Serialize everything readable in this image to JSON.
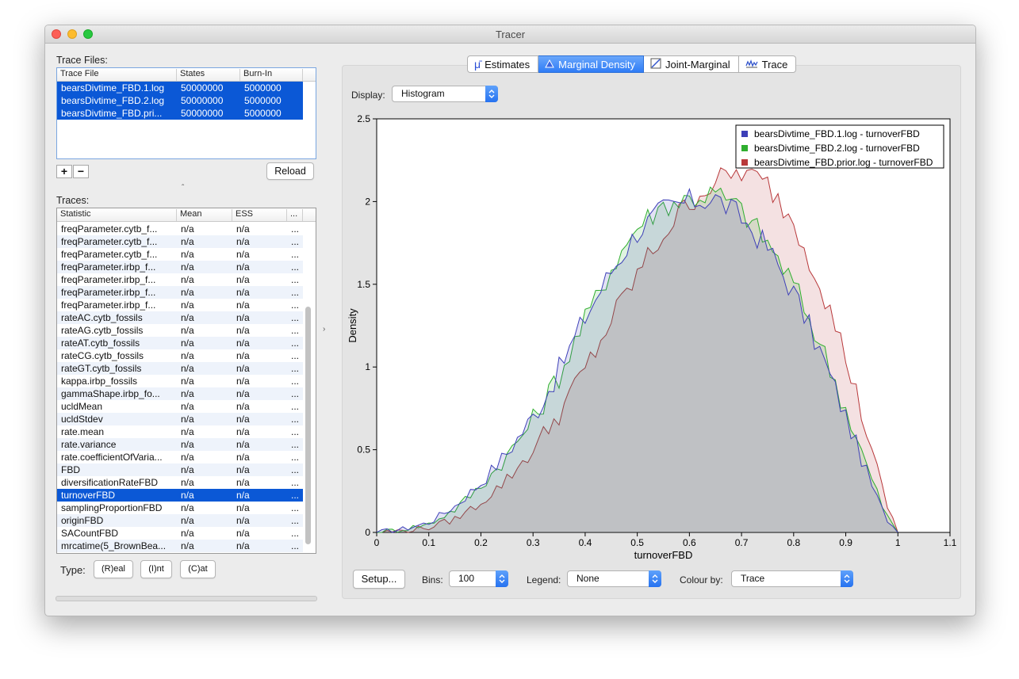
{
  "window": {
    "title": "Tracer"
  },
  "trace_files": {
    "label": "Trace Files:",
    "columns": [
      "Trace File",
      "States",
      "Burn-In"
    ],
    "rows": [
      {
        "file": "bearsDivtime_FBD.1.log",
        "states": "50000000",
        "burnin": "5000000"
      },
      {
        "file": "bearsDivtime_FBD.2.log",
        "states": "50000000",
        "burnin": "5000000"
      },
      {
        "file": "bearsDivtime_FBD.pri...",
        "states": "50000000",
        "burnin": "5000000"
      }
    ],
    "add_label": "+",
    "remove_label": "−",
    "reload_label": "Reload"
  },
  "traces": {
    "label": "Traces:",
    "columns": [
      "Statistic",
      "Mean",
      "ESS",
      "..."
    ],
    "rows": [
      {
        "stat": "freqParameter.cytb_f...",
        "mean": "n/a",
        "ess": "n/a",
        "more": "..."
      },
      {
        "stat": "freqParameter.cytb_f...",
        "mean": "n/a",
        "ess": "n/a",
        "more": "..."
      },
      {
        "stat": "freqParameter.cytb_f...",
        "mean": "n/a",
        "ess": "n/a",
        "more": "..."
      },
      {
        "stat": "freqParameter.irbp_f...",
        "mean": "n/a",
        "ess": "n/a",
        "more": "..."
      },
      {
        "stat": "freqParameter.irbp_f...",
        "mean": "n/a",
        "ess": "n/a",
        "more": "..."
      },
      {
        "stat": "freqParameter.irbp_f...",
        "mean": "n/a",
        "ess": "n/a",
        "more": "..."
      },
      {
        "stat": "freqParameter.irbp_f...",
        "mean": "n/a",
        "ess": "n/a",
        "more": "..."
      },
      {
        "stat": "rateAC.cytb_fossils",
        "mean": "n/a",
        "ess": "n/a",
        "more": "..."
      },
      {
        "stat": "rateAG.cytb_fossils",
        "mean": "n/a",
        "ess": "n/a",
        "more": "..."
      },
      {
        "stat": "rateAT.cytb_fossils",
        "mean": "n/a",
        "ess": "n/a",
        "more": "..."
      },
      {
        "stat": "rateCG.cytb_fossils",
        "mean": "n/a",
        "ess": "n/a",
        "more": "..."
      },
      {
        "stat": "rateGT.cytb_fossils",
        "mean": "n/a",
        "ess": "n/a",
        "more": "..."
      },
      {
        "stat": "kappa.irbp_fossils",
        "mean": "n/a",
        "ess": "n/a",
        "more": "..."
      },
      {
        "stat": "gammaShape.irbp_fo...",
        "mean": "n/a",
        "ess": "n/a",
        "more": "..."
      },
      {
        "stat": "ucldMean",
        "mean": "n/a",
        "ess": "n/a",
        "more": "..."
      },
      {
        "stat": "ucldStdev",
        "mean": "n/a",
        "ess": "n/a",
        "more": "..."
      },
      {
        "stat": "rate.mean",
        "mean": "n/a",
        "ess": "n/a",
        "more": "..."
      },
      {
        "stat": "rate.variance",
        "mean": "n/a",
        "ess": "n/a",
        "more": "..."
      },
      {
        "stat": "rate.coefficientOfVaria...",
        "mean": "n/a",
        "ess": "n/a",
        "more": "..."
      },
      {
        "stat": "FBD",
        "mean": "n/a",
        "ess": "n/a",
        "more": "..."
      },
      {
        "stat": "diversificationRateFBD",
        "mean": "n/a",
        "ess": "n/a",
        "more": "..."
      },
      {
        "stat": "turnoverFBD",
        "mean": "n/a",
        "ess": "n/a",
        "more": "...",
        "selected": true
      },
      {
        "stat": "samplingProportionFBD",
        "mean": "n/a",
        "ess": "n/a",
        "more": "..."
      },
      {
        "stat": "originFBD",
        "mean": "n/a",
        "ess": "n/a",
        "more": "..."
      },
      {
        "stat": "SACountFBD",
        "mean": "n/a",
        "ess": "n/a",
        "more": "..."
      },
      {
        "stat": "mrcatime(5_BrownBea...",
        "mean": "n/a",
        "ess": "n/a",
        "more": "..."
      }
    ]
  },
  "type_row": {
    "label": "Type:",
    "real": "(R)eal",
    "int": "(I)nt",
    "cat": "(C)at"
  },
  "tabs": [
    {
      "label": "Estimates",
      "icon": "mu-icon",
      "active": false
    },
    {
      "label": "Marginal Density",
      "icon": "density-icon",
      "active": true
    },
    {
      "label": "Joint-Marginal",
      "icon": "joint-icon",
      "active": false
    },
    {
      "label": "Trace",
      "icon": "trace-icon",
      "active": false
    }
  ],
  "display": {
    "label": "Display:",
    "value": "Histogram"
  },
  "bottom_controls": {
    "setup_label": "Setup...",
    "bins_label": "Bins:",
    "bins_value": "100",
    "legend_label": "Legend:",
    "legend_value": "None",
    "colour_label": "Colour by:",
    "colour_value": "Trace"
  },
  "chart_data": {
    "type": "area",
    "title": "",
    "xlabel": "turnoverFBD",
    "ylabel": "Density",
    "xlim": [
      0,
      1.1
    ],
    "ylim": [
      0,
      2.5
    ],
    "xticks": [
      "0",
      "0.1",
      "0.2",
      "0.3",
      "0.4",
      "0.5",
      "0.6",
      "0.7",
      "0.8",
      "0.9",
      "1",
      "1.1"
    ],
    "yticks": [
      "0",
      "0.5",
      "1",
      "1.5",
      "2",
      "2.5"
    ],
    "legend_position": "top-right",
    "x": [
      0,
      0.05,
      0.1,
      0.15,
      0.2,
      0.25,
      0.3,
      0.35,
      0.4,
      0.45,
      0.5,
      0.55,
      0.6,
      0.65,
      0.7,
      0.75,
      0.8,
      0.85,
      0.9,
      0.95,
      0.975,
      1.0
    ],
    "series": [
      {
        "name": "bearsDivtime_FBD.1.log - turnoverFBD",
        "color": "#3d3fb8",
        "values": [
          0,
          0.02,
          0.06,
          0.16,
          0.3,
          0.48,
          0.7,
          0.98,
          1.3,
          1.58,
          1.82,
          1.95,
          2.0,
          2.02,
          1.9,
          1.72,
          1.45,
          1.1,
          0.7,
          0.28,
          0.1,
          0
        ]
      },
      {
        "name": "bearsDivtime_FBD.2.log - turnoverFBD",
        "color": "#2fae2f",
        "values": [
          0,
          0.02,
          0.05,
          0.14,
          0.28,
          0.46,
          0.68,
          0.95,
          1.28,
          1.6,
          1.85,
          1.98,
          2.02,
          2.05,
          1.95,
          1.75,
          1.5,
          1.15,
          0.75,
          0.32,
          0.12,
          0
        ]
      },
      {
        "name": "bearsDivtime_FBD.prior.log - turnoverFBD",
        "color": "#b8383a",
        "values": [
          0,
          0.01,
          0.03,
          0.08,
          0.18,
          0.32,
          0.5,
          0.72,
          0.98,
          1.28,
          1.56,
          1.8,
          2.0,
          2.12,
          2.18,
          2.1,
          1.88,
          1.52,
          1.06,
          0.5,
          0.2,
          0
        ]
      }
    ]
  }
}
